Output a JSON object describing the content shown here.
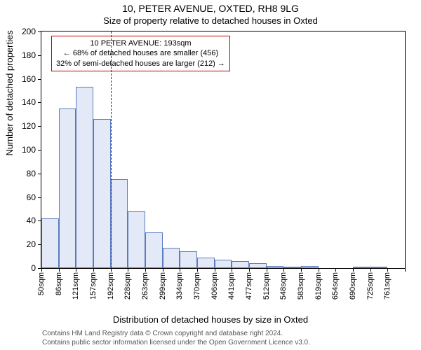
{
  "title": "10, PETER AVENUE, OXTED, RH8 9LG",
  "subtitle": "Size of property relative to detached houses in Oxted",
  "ylabel": "Number of detached properties",
  "xlabel": "Distribution of detached houses by size in Oxted",
  "footer_line1": "Contains HM Land Registry data © Crown copyright and database right 2024.",
  "footer_line2": "Contains public sector information licensed under the Open Government Licence v3.0.",
  "chart": {
    "type": "histogram",
    "ylim": [
      0,
      200
    ],
    "yticks": [
      0,
      20,
      40,
      60,
      80,
      100,
      120,
      140,
      160,
      180,
      200
    ],
    "categories": [
      "50sqm",
      "86sqm",
      "121sqm",
      "157sqm",
      "192sqm",
      "228sqm",
      "263sqm",
      "299sqm",
      "334sqm",
      "370sqm",
      "406sqm",
      "441sqm",
      "477sqm",
      "512sqm",
      "548sqm",
      "583sqm",
      "619sqm",
      "654sqm",
      "690sqm",
      "725sqm",
      "761sqm"
    ],
    "values": [
      42,
      135,
      153,
      126,
      75,
      48,
      30,
      17,
      14,
      9,
      7,
      6,
      4,
      2,
      1,
      2,
      0,
      0,
      1,
      1
    ],
    "bar_fill": "#e3e9f6",
    "bar_border": "#5b7bc0",
    "background_color": "#ffffff",
    "axis_color": "#000000",
    "marker_color": "#c00000",
    "marker_category_index": 4,
    "annotation": {
      "line1": "10 PETER AVENUE: 193sqm",
      "line2": "← 68% of detached houses are smaller (456)",
      "line3": "32% of semi-detached houses are larger (212) →"
    },
    "title_fontsize": 14,
    "subtitle_fontsize": 13,
    "label_fontsize": 13,
    "tick_fontsize": 12,
    "xtick_fontsize": 11,
    "annot_fontsize": 11
  }
}
